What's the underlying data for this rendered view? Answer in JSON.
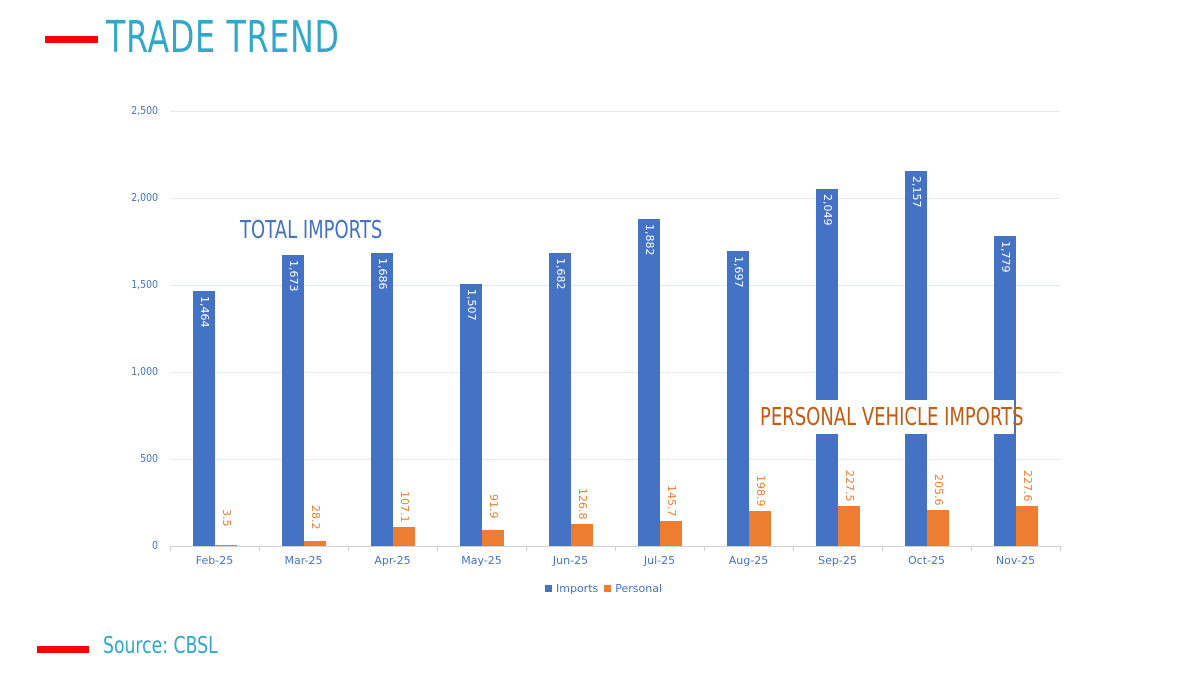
{
  "header": {
    "title": "TRADE TREND",
    "accent_color": "#ff0000",
    "title_color": "#31a7c9"
  },
  "annotations": {
    "total_imports": "TOTAL IMPORTS",
    "personal_vehicle_imports": "PERSONAL VEHICLE IMPORTS"
  },
  "legend": {
    "imports": "Imports",
    "personal": "Personal"
  },
  "footer": {
    "source": "Source: CBSL"
  },
  "y_ticks": [
    "0",
    "500",
    "1,000",
    "1,500",
    "2,000",
    "2,500"
  ],
  "chart_data": {
    "type": "bar",
    "title": "TRADE TREND",
    "xlabel": "",
    "ylabel": "",
    "ylim": [
      0,
      2500
    ],
    "yticks": [
      0,
      500,
      1000,
      1500,
      2000,
      2500
    ],
    "grid": true,
    "legend_position": "bottom",
    "categories": [
      "Feb-25",
      "Mar-25",
      "Apr-25",
      "May-25",
      "Jun-25",
      "Jul-25",
      "Aug-25",
      "Sep-25",
      "Oct-25",
      "Nov-25"
    ],
    "series": [
      {
        "name": "Imports",
        "color": "#4472c4",
        "values": [
          1464,
          1673,
          1686,
          1507,
          1682,
          1882,
          1697,
          2049,
          2157,
          1779
        ],
        "labels": [
          "1,464",
          "1,673",
          "1,686",
          "1,507",
          "1,682",
          "1,882",
          "1,697",
          "2,049",
          "2,157",
          "1,779"
        ]
      },
      {
        "name": "Personal",
        "color": "#ed7d31",
        "values": [
          3.5,
          28.2,
          107.1,
          91.9,
          126.8,
          145.7,
          198.9,
          227.5,
          205.6,
          227.6
        ],
        "labels": [
          "3.5",
          "28.2",
          "107.1",
          "91.9",
          "126.8",
          "145.7",
          "198.9",
          "227.5",
          "205.6",
          "227.6"
        ]
      }
    ],
    "annotations": [
      "TOTAL IMPORTS",
      "PERSONAL VEHICLE IMPORTS"
    ],
    "source": "Source: CBSL"
  }
}
